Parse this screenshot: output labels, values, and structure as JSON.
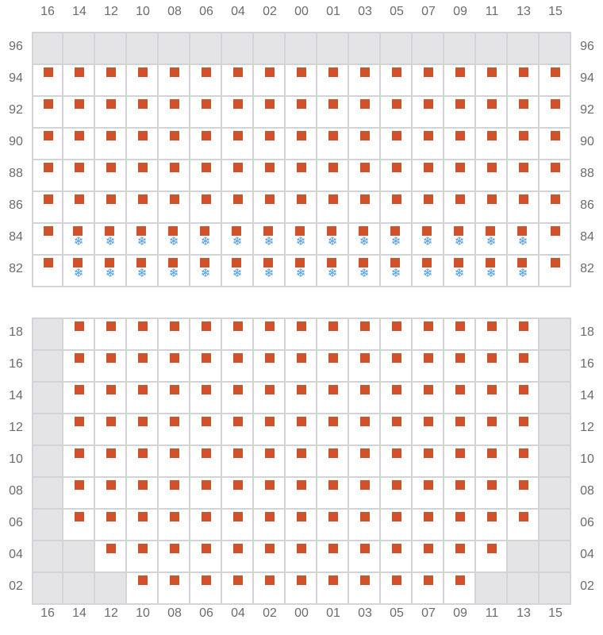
{
  "columns": [
    "16",
    "14",
    "12",
    "10",
    "08",
    "06",
    "04",
    "02",
    "00",
    "01",
    "03",
    "05",
    "07",
    "09",
    "11",
    "13",
    "15"
  ],
  "colors": {
    "occupied": "#d0522a",
    "frozen": "#4a9be0",
    "unavailable": "#e4e4e7",
    "grid": "#d4d4d8"
  },
  "icons": {
    "occupied": "square-marker",
    "frozen": "snowflake-icon"
  },
  "grids": [
    {
      "rows": [
        {
          "label": "96",
          "cells": "UUUUUUUUUUUUUUUUU"
        },
        {
          "label": "94",
          "cells": "OOOOOOOOOOOOOOOOO"
        },
        {
          "label": "92",
          "cells": "OOOOOOOOOOOOOOOOO"
        },
        {
          "label": "90",
          "cells": "OOOOOOOOOOOOOOOOO"
        },
        {
          "label": "88",
          "cells": "OOOOOOOOOOOOOOOOO"
        },
        {
          "label": "86",
          "cells": "OOOOOOOOOOOOOOOOO"
        },
        {
          "label": "84",
          "cells": "OFFFFFFFFFFFFFFFO"
        },
        {
          "label": "82",
          "cells": "OFFFFFFFFFFFFFFFO"
        }
      ]
    },
    {
      "rows": [
        {
          "label": "18",
          "cells": "UOOOOOOOOOOOOOOOU"
        },
        {
          "label": "16",
          "cells": "UOOOOOOOOOOOOOOOU"
        },
        {
          "label": "14",
          "cells": "UOOOOOOOOOOOOOOOU"
        },
        {
          "label": "12",
          "cells": "UOOOOOOOOOOOOOOOU"
        },
        {
          "label": "10",
          "cells": "UOOOOOOOOOOOOOOOU"
        },
        {
          "label": "08",
          "cells": "UOOOOOOOOOOOOOOOU"
        },
        {
          "label": "06",
          "cells": "UOOOOOOOOOOOOOOOU"
        },
        {
          "label": "04",
          "cells": "UUOOOOOOOOOOOOOUU"
        },
        {
          "label": "02",
          "cells": "UUUOOOOOOOOOOOUUU"
        }
      ]
    }
  ],
  "legend_codes": {
    "U": "unavailable",
    "O": "occupied",
    "F": "occupied-frozen"
  }
}
